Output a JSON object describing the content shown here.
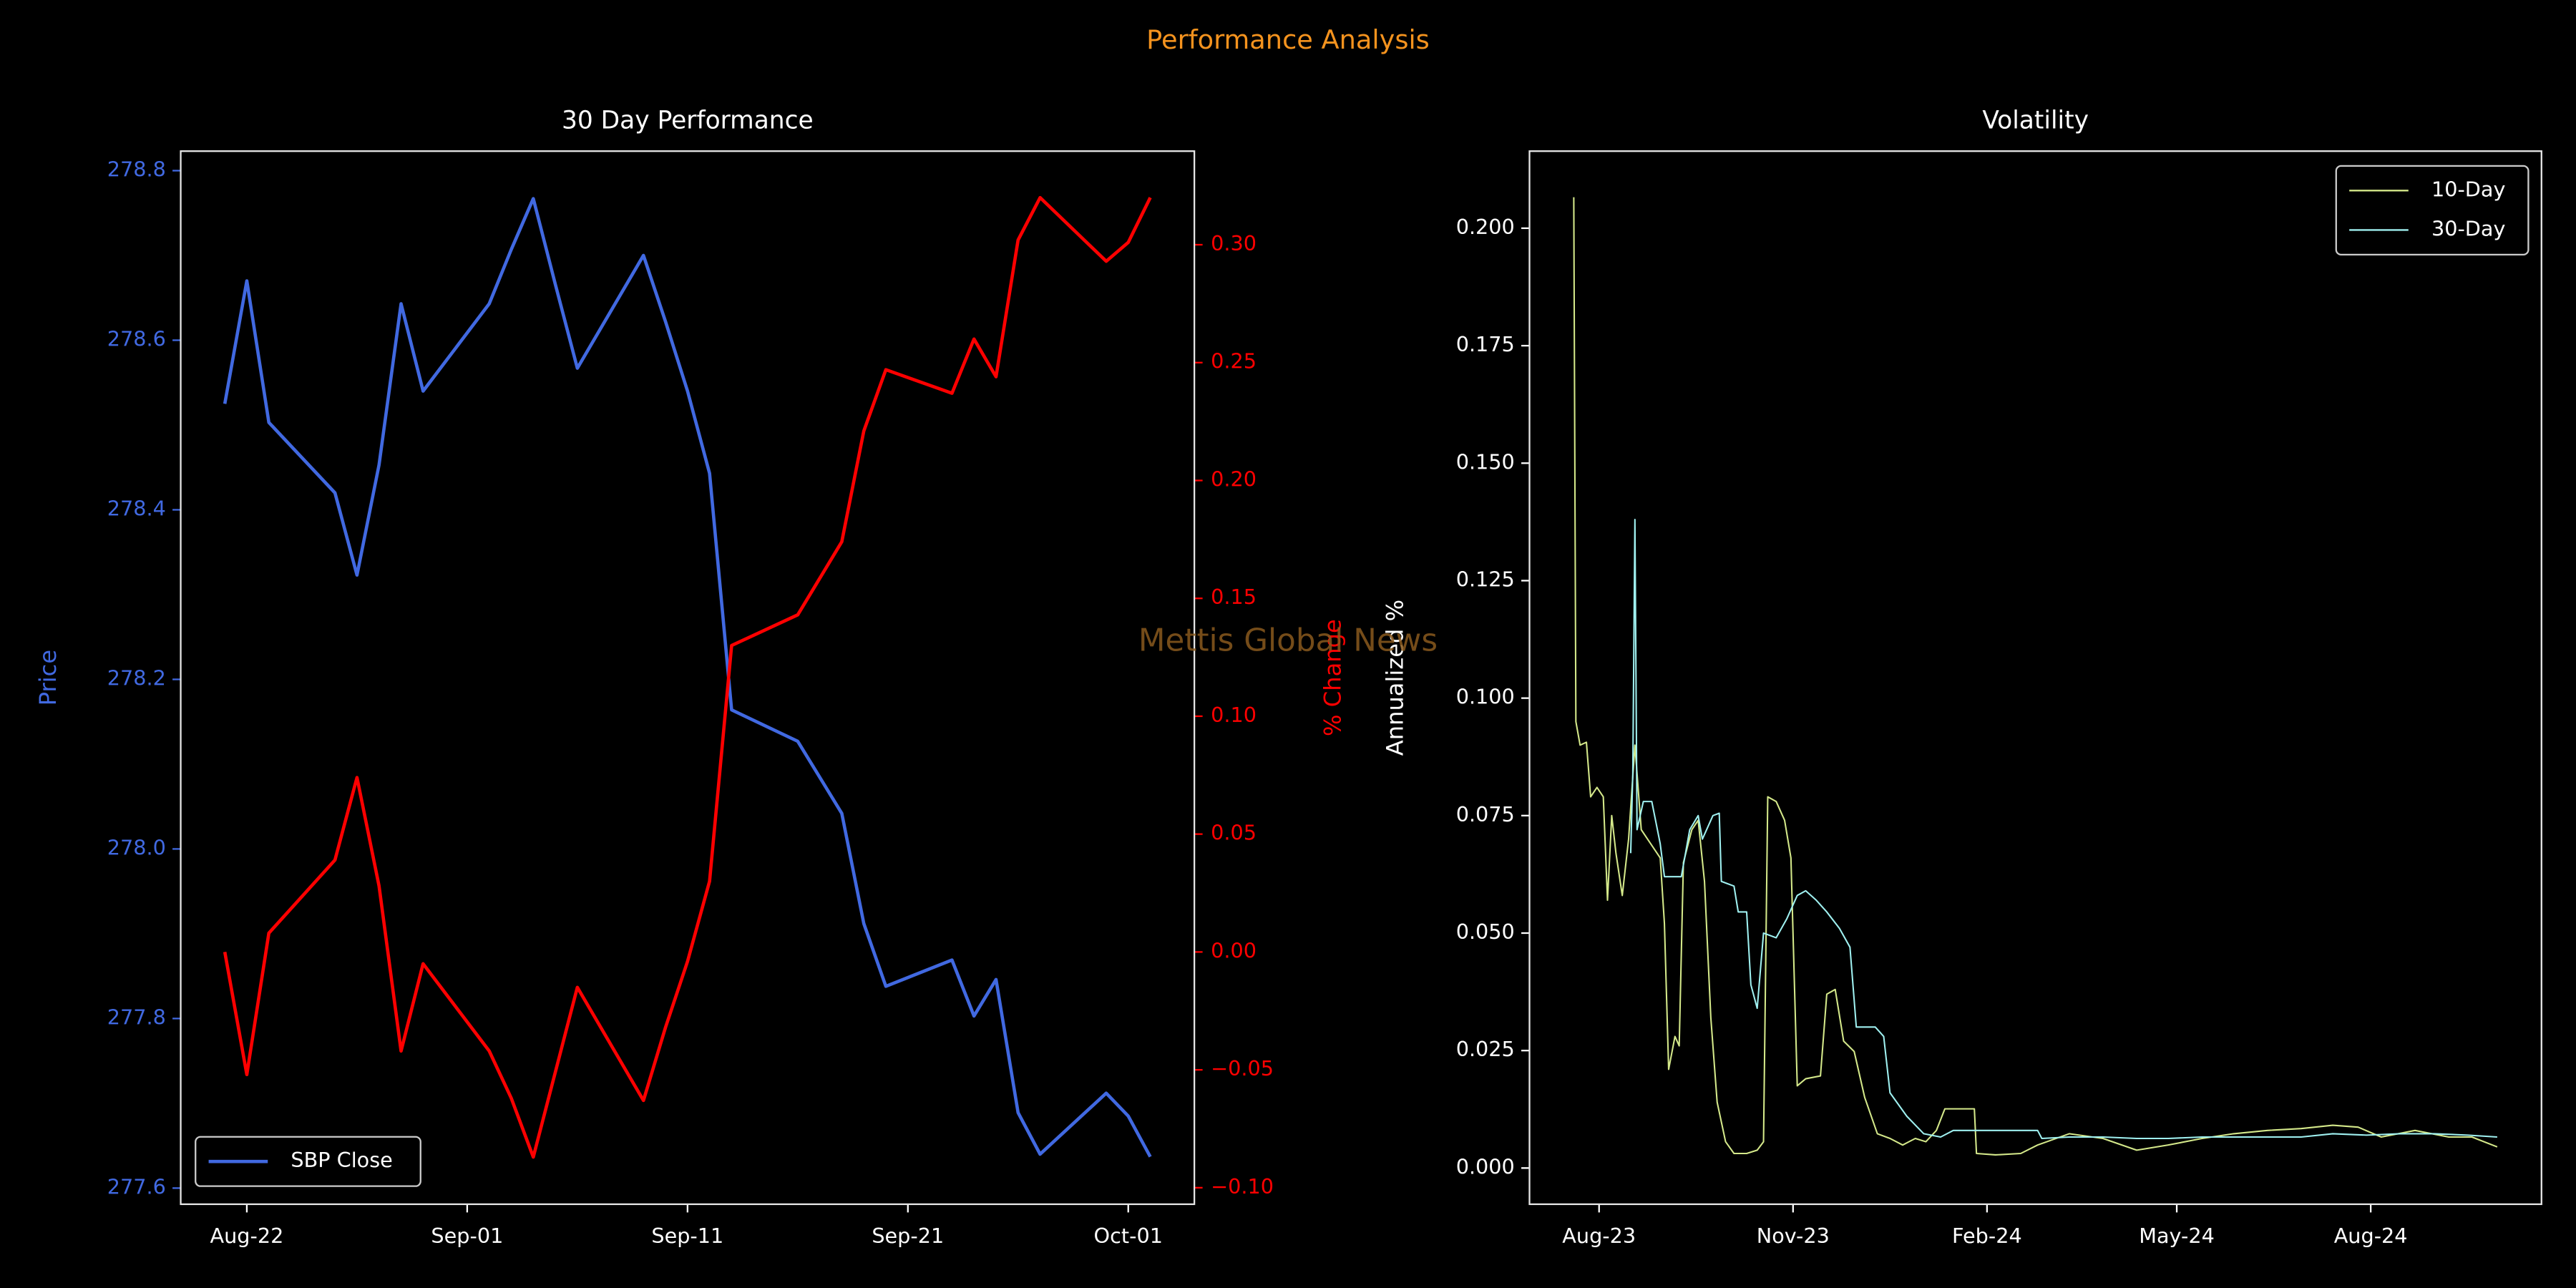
{
  "title": "Performance Analysis",
  "watermark": "Mettis Global News",
  "chart_data": [
    {
      "type": "line",
      "title": "30 Day Performance",
      "ylabel": "Price",
      "y2label": "% Change",
      "ycolor": "#4169e1",
      "y2color": "#ff0000",
      "x": [
        "Aug-21",
        "Aug-22",
        "Aug-23",
        "Aug-26",
        "Aug-27",
        "Aug-28",
        "Aug-29",
        "Aug-30",
        "Sep-02",
        "Sep-03",
        "Sep-04",
        "Sep-05",
        "Sep-06",
        "Sep-09",
        "Sep-10",
        "Sep-11",
        "Sep-12",
        "Sep-13",
        "Sep-16",
        "Sep-18",
        "Sep-19",
        "Sep-20",
        "Sep-23",
        "Sep-24",
        "Sep-25",
        "Sep-26",
        "Sep-27",
        "Sep-30",
        "Oct-01",
        "Oct-02"
      ],
      "xlim": [
        "Aug-19",
        "Oct-04"
      ],
      "xticks": [
        "Aug-22",
        "Sep-01",
        "Sep-11",
        "Sep-21",
        "Oct-01"
      ],
      "ylim": [
        277.581,
        278.823
      ],
      "yticks": [
        277.6,
        277.8,
        {
          "value": 278.0,
          "label": "278.0"
        },
        278.2,
        278.4,
        278.6,
        278.8
      ],
      "y2lim": [
        -0.107,
        0.3397
      ],
      "y2ticks": [
        {
          "value": -0.1,
          "label": "−0.10"
        },
        {
          "value": -0.05,
          "label": "−0.05"
        },
        {
          "value": 0,
          "label": "0.00"
        },
        0.05,
        {
          "value": 0.1,
          "label": "0.10"
        },
        0.15,
        {
          "value": 0.2,
          "label": "0.20"
        },
        0.25,
        {
          "value": 0.3,
          "label": "0.30"
        }
      ],
      "legend": "lower left",
      "series": [
        {
          "name": "SBP Close",
          "color": "#4169e1",
          "values": [
            278.525,
            278.67,
            278.503,
            278.42,
            278.323,
            278.453,
            278.643,
            278.54,
            278.643,
            278.707,
            278.767,
            278.666,
            278.567,
            278.7,
            278.622,
            278.54,
            278.443,
            278.164,
            278.127,
            278.042,
            277.912,
            277.838,
            277.869,
            277.803,
            277.846,
            277.689,
            277.64,
            277.712,
            277.685,
            277.637
          ]
        },
        {
          "color": "#ff0000",
          "axis": "y2",
          "values": [
            0.0,
            -0.052,
            0.008,
            0.039,
            0.074,
            0.028,
            -0.042,
            -0.005,
            -0.042,
            -0.062,
            -0.087,
            -0.051,
            -0.015,
            -0.063,
            -0.032,
            -0.004,
            0.03,
            0.13,
            0.143,
            0.174,
            0.221,
            0.247,
            0.237,
            0.26,
            0.244,
            0.302,
            0.32,
            0.293,
            0.301,
            0.32
          ]
        }
      ]
    },
    {
      "type": "line",
      "title": "Volatility",
      "ylabel": "Annualized %",
      "xlim": [
        "2023-06-29",
        "2024-10-21"
      ],
      "xticks": [
        {
          "value": "2023-08-01",
          "label": "Aug-23"
        },
        {
          "value": "2023-11-01",
          "label": "Nov-23"
        },
        {
          "value": "2024-02-01",
          "label": "Feb-24"
        },
        {
          "value": "2024-05-01",
          "label": "May-24"
        },
        {
          "value": "2024-08-01",
          "label": "Aug-24"
        }
      ],
      "ylim": [
        -0.0077,
        0.2164
      ],
      "yticks": [
        {
          "value": 0,
          "label": "0.000"
        },
        0.025,
        {
          "value": 0.05,
          "label": "0.050"
        },
        0.075,
        {
          "value": 0.1,
          "label": "0.100"
        },
        0.125,
        {
          "value": 0.15,
          "label": "0.150"
        },
        0.175,
        {
          "value": 0.2,
          "label": "0.200"
        }
      ],
      "legend": "upper right",
      "series": [
        {
          "name": "10-Day",
          "color": "#d4e88a",
          "x": [
            "2023-07-20",
            "2023-07-21",
            "2023-07-23",
            "2023-07-26",
            "2023-07-28",
            "2023-07-31",
            "2023-08-03",
            "2023-08-05",
            "2023-08-07",
            "2023-08-09",
            "2023-08-12",
            "2023-08-15",
            "2023-08-18",
            "2023-08-21",
            "2023-08-24",
            "2023-08-30",
            "2023-09-01",
            "2023-09-03",
            "2023-09-06",
            "2023-09-08",
            "2023-09-10",
            "2023-09-14",
            "2023-09-17",
            "2023-09-20",
            "2023-09-23",
            "2023-09-26",
            "2023-09-30",
            "2023-10-04",
            "2023-10-10",
            "2023-10-15",
            "2023-10-18",
            "2023-10-20",
            "2023-10-24",
            "2023-10-28",
            "2023-10-31",
            "2023-11-03",
            "2023-11-07",
            "2023-11-14",
            "2023-11-17",
            "2023-11-21",
            "2023-11-25",
            "2023-11-30",
            "2023-12-05",
            "2023-12-11",
            "2023-12-17",
            "2023-12-23",
            "2023-12-29",
            "2024-01-03",
            "2024-01-08",
            "2024-01-12",
            "2024-01-26",
            "2024-01-27",
            "2024-02-05",
            "2024-02-17",
            "2024-02-25",
            "2024-03-11",
            "2024-03-27",
            "2024-04-12",
            "2024-04-27",
            "2024-05-13",
            "2024-05-28",
            "2024-06-13",
            "2024-06-29",
            "2024-07-14",
            "2024-07-26",
            "2024-08-06",
            "2024-08-22",
            "2024-09-07",
            "2024-09-18",
            "2024-09-30"
          ],
          "values": [
            0.2066,
            0.095,
            0.09,
            0.0906,
            0.079,
            0.081,
            0.079,
            0.057,
            0.075,
            0.067,
            0.058,
            0.07,
            0.09,
            0.072,
            0.07,
            0.066,
            0.052,
            0.021,
            0.028,
            0.026,
            0.065,
            0.072,
            0.074,
            0.061,
            0.032,
            0.014,
            0.0056,
            0.0031,
            0.0031,
            0.0038,
            0.0056,
            0.079,
            0.078,
            0.074,
            0.066,
            0.0175,
            0.019,
            0.0196,
            0.037,
            0.038,
            0.027,
            0.0248,
            0.015,
            0.0073,
            0.0063,
            0.0049,
            0.0063,
            0.0056,
            0.008,
            0.0126,
            0.0126,
            0.0031,
            0.0028,
            0.0031,
            0.0049,
            0.0073,
            0.0063,
            0.0038,
            0.0049,
            0.0063,
            0.0073,
            0.008,
            0.0084,
            0.0091,
            0.0087,
            0.0066,
            0.008,
            0.0066,
            0.0066,
            0.0045
          ]
        },
        {
          "name": "30-Day",
          "color": "#9ff0f0",
          "x": [
            "2023-08-16",
            "2023-08-17",
            "2023-08-18",
            "2023-08-19",
            "2023-08-22",
            "2023-08-26",
            "2023-08-30",
            "2023-09-01",
            "2023-09-05",
            "2023-09-09",
            "2023-09-13",
            "2023-09-17",
            "2023-09-19",
            "2023-09-24",
            "2023-09-27",
            "2023-09-28",
            "2023-10-04",
            "2023-10-06",
            "2023-10-10",
            "2023-10-12",
            "2023-10-15",
            "2023-10-18",
            "2023-10-24",
            "2023-10-29",
            "2023-11-03",
            "2023-11-07",
            "2023-11-12",
            "2023-11-17",
            "2023-11-23",
            "2023-11-28",
            "2023-12-01",
            "2023-12-10",
            "2023-12-14",
            "2023-12-17",
            "2023-12-25",
            "2024-01-02",
            "2024-01-10",
            "2024-01-16",
            "2024-01-26",
            "2024-02-05",
            "2024-02-17",
            "2024-02-25",
            "2024-02-27",
            "2024-03-11",
            "2024-03-27",
            "2024-04-12",
            "2024-04-27",
            "2024-05-13",
            "2024-05-28",
            "2024-06-13",
            "2024-06-29",
            "2024-07-14",
            "2024-07-30",
            "2024-08-15",
            "2024-08-31",
            "2024-09-16",
            "2024-09-30"
          ],
          "values": [
            0.067,
            0.084,
            0.138,
            0.072,
            0.078,
            0.078,
            0.069,
            0.062,
            0.062,
            0.062,
            0.072,
            0.075,
            0.07,
            0.075,
            0.0755,
            0.061,
            0.06,
            0.0545,
            0.0545,
            0.039,
            0.034,
            0.05,
            0.049,
            0.053,
            0.058,
            0.059,
            0.057,
            0.0545,
            0.051,
            0.047,
            0.03,
            0.03,
            0.028,
            0.016,
            0.011,
            0.0073,
            0.0066,
            0.008,
            0.008,
            0.008,
            0.008,
            0.008,
            0.0063,
            0.0066,
            0.0066,
            0.0063,
            0.0063,
            0.0066,
            0.0066,
            0.0066,
            0.0066,
            0.0073,
            0.007,
            0.0073,
            0.0073,
            0.007,
            0.0066
          ]
        }
      ]
    }
  ]
}
